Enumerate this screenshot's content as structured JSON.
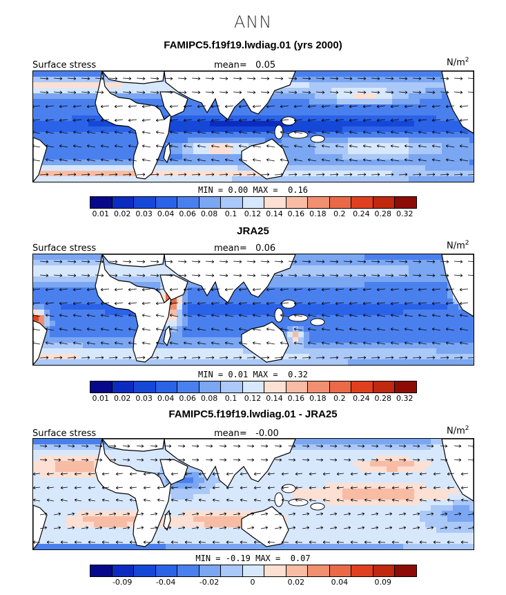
{
  "title": "ANN",
  "palette": [
    "#08088a",
    "#0c2cc0",
    "#1648d8",
    "#2a62e8",
    "#4a80ee",
    "#7aa6f2",
    "#aac8f8",
    "#d8e8fc",
    "#fce0d4",
    "#f8bca4",
    "#f09070",
    "#ea6a48",
    "#e04020",
    "#c02810",
    "#8e0c06"
  ],
  "panels": [
    {
      "title": "FAMIPC5.f19f19.lwdiag.01 (yrs 2000)",
      "label": "Surface stress",
      "mean_label": "mean=",
      "mean": "0.05",
      "units": "N/m",
      "units_sup": "2",
      "min_label": "MIN =",
      "min": "0.00",
      "max_label": "MAX =",
      "max": "0.16",
      "ticks": [
        "0.01",
        "0.02",
        "0.03",
        "0.04",
        "0.06",
        "0.08",
        "0.1",
        "0.12",
        "0.14",
        "0.16",
        "0.18",
        "0.2",
        "0.24",
        "0.28",
        "0.32"
      ],
      "style": "mod"
    },
    {
      "title": "JRA25",
      "label": "Surface stress",
      "mean_label": "mean=",
      "mean": "0.06",
      "units": "N/m",
      "units_sup": "2",
      "min_label": "MIN =",
      "min": "0.01",
      "max_label": "MAX =",
      "max": "0.32",
      "ticks": [
        "0.01",
        "0.02",
        "0.03",
        "0.04",
        "0.06",
        "0.08",
        "0.1",
        "0.12",
        "0.14",
        "0.16",
        "0.18",
        "0.2",
        "0.24",
        "0.28",
        "0.32"
      ],
      "style": "obs"
    },
    {
      "title": "FAMIPC5.f19f19.lwdiag.01 - JRA25",
      "label": "Surface stress",
      "mean_label": "mean=",
      "mean": "-0.00",
      "units": "N/m",
      "units_sup": "2",
      "min_label": "MIN =",
      "min": "-0.19",
      "max_label": "MAX =",
      "max": "0.07",
      "ticks": [
        "",
        "-0.09",
        "",
        "-0.04",
        "",
        "-0.02",
        "",
        "0",
        "",
        "0.02",
        "",
        "0.04",
        "",
        "0.09",
        ""
      ],
      "style": "diff"
    }
  ]
}
